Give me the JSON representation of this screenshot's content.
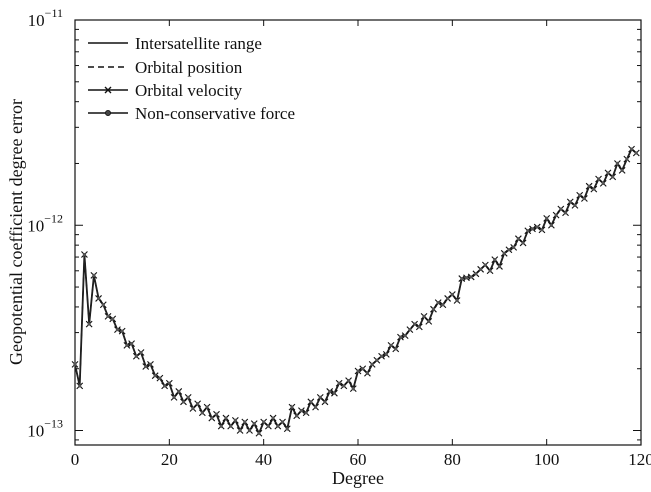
{
  "chart_data": {
    "type": "line",
    "title": "",
    "xlabel": "Degree",
    "ylabel": "Geopotential coefficient degree error",
    "xscale": "linear",
    "yscale": "log",
    "xlim": [
      0,
      120
    ],
    "ylim": [
      8.5e-14,
      1e-11
    ],
    "xticks": [
      0,
      20,
      40,
      60,
      80,
      100,
      120
    ],
    "xtick_labels": [
      "0",
      "20",
      "40",
      "60",
      "80",
      "100",
      "120"
    ],
    "yticks": [
      {
        "value": 1e-13,
        "base": "10",
        "exp": "−13"
      },
      {
        "value": 1e-12,
        "base": "10",
        "exp": "−12"
      },
      {
        "value": 1e-11,
        "base": "10",
        "exp": "−11"
      }
    ],
    "legend_position": "top-left",
    "series": [
      {
        "name": "Intersatellite range",
        "style": "solid",
        "marker": "none"
      },
      {
        "name": "Orbital position",
        "style": "dashed",
        "marker": "none"
      },
      {
        "name": "Orbital velocity",
        "style": "solid",
        "marker": "x"
      },
      {
        "name": "Non-conservative force",
        "style": "solid",
        "marker": "circle"
      }
    ],
    "x": [
      0,
      1,
      2,
      3,
      4,
      5,
      6,
      7,
      8,
      9,
      10,
      11,
      12,
      13,
      14,
      15,
      16,
      17,
      18,
      19,
      20,
      21,
      22,
      23,
      24,
      25,
      26,
      27,
      28,
      29,
      30,
      31,
      32,
      33,
      34,
      35,
      36,
      37,
      38,
      39,
      40,
      41,
      42,
      43,
      44,
      45,
      46,
      47,
      48,
      49,
      50,
      51,
      52,
      53,
      54,
      55,
      56,
      57,
      58,
      59,
      60,
      61,
      62,
      63,
      64,
      65,
      66,
      67,
      68,
      69,
      70,
      71,
      72,
      73,
      74,
      75,
      76,
      77,
      78,
      79,
      80,
      81,
      82,
      83,
      84,
      85,
      86,
      87,
      88,
      89,
      90,
      91,
      92,
      93,
      94,
      95,
      96,
      97,
      98,
      99,
      100,
      101,
      102,
      103,
      104,
      105,
      106,
      107,
      108,
      109,
      110,
      111,
      112,
      113,
      114,
      115,
      116,
      117,
      118,
      119
    ],
    "y": [
      2.1e-13,
      1.65e-13,
      7.2e-13,
      3.3e-13,
      5.7e-13,
      4.4e-13,
      4.1e-13,
      3.6e-13,
      3.5e-13,
      3.1e-13,
      3.05e-13,
      2.6e-13,
      2.65e-13,
      2.3e-13,
      2.4e-13,
      2.05e-13,
      2.1e-13,
      1.85e-13,
      1.8e-13,
      1.65e-13,
      1.7e-13,
      1.45e-13,
      1.55e-13,
      1.38e-13,
      1.45e-13,
      1.28e-13,
      1.35e-13,
      1.22e-13,
      1.3e-13,
      1.15e-13,
      1.2e-13,
      1.05e-13,
      1.15e-13,
      1.05e-13,
      1.12e-13,
      1e-13,
      1.1e-13,
      1e-13,
      1.08e-13,
      9.7e-14,
      1.1e-13,
      1.05e-13,
      1.15e-13,
      1.05e-13,
      1.1e-13,
      1.02e-13,
      1.3e-13,
      1.18e-13,
      1.25e-13,
      1.22e-13,
      1.38e-13,
      1.3e-13,
      1.45e-13,
      1.38e-13,
      1.55e-13,
      1.52e-13,
      1.7e-13,
      1.65e-13,
      1.75e-13,
      1.6e-13,
      1.95e-13,
      2e-13,
      1.9e-13,
      2.1e-13,
      2.2e-13,
      2.3e-13,
      2.35e-13,
      2.6e-13,
      2.5e-13,
      2.85e-13,
      2.9e-13,
      3.1e-13,
      3.3e-13,
      3.2e-13,
      3.6e-13,
      3.4e-13,
      3.9e-13,
      4.2e-13,
      4.1e-13,
      4.4e-13,
      4.6e-13,
      4.3e-13,
      5.5e-13,
      5.55e-13,
      5.6e-13,
      5.8e-13,
      6.1e-13,
      6.4e-13,
      6e-13,
      6.8e-13,
      6.3e-13,
      7.3e-13,
      7.6e-13,
      7.8e-13,
      8.6e-13,
      8.2e-13,
      9.4e-13,
      9.6e-13,
      9.8e-13,
      9.5e-13,
      1.08e-12,
      1e-12,
      1.12e-12,
      1.2e-12,
      1.15e-12,
      1.3e-12,
      1.25e-12,
      1.4e-12,
      1.35e-12,
      1.55e-12,
      1.5e-12,
      1.68e-12,
      1.6e-12,
      1.8e-12,
      1.72e-12,
      2e-12,
      1.85e-12,
      2.1e-12,
      2.35e-12,
      2.25e-12
    ]
  }
}
